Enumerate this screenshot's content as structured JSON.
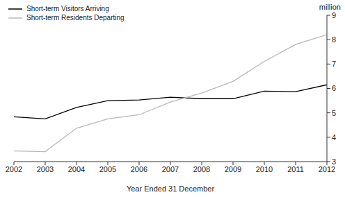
{
  "chart_data": {
    "type": "line",
    "x_label": "Year Ended 31 December",
    "y_label": "million",
    "x": [
      2002,
      2003,
      2004,
      2005,
      2006,
      2007,
      2008,
      2009,
      2010,
      2011,
      2012
    ],
    "xlim": [
      2002,
      2012
    ],
    "xticks": [
      2002,
      2003,
      2004,
      2005,
      2006,
      2007,
      2008,
      2009,
      2010,
      2011,
      2012
    ],
    "ylim": [
      3,
      9
    ],
    "yticks": [
      3,
      4,
      5,
      6,
      7,
      8,
      9
    ],
    "grid": false,
    "legend": "upper left",
    "series": [
      {
        "name": "Short-term Visitors Arriving",
        "color": "#000000",
        "values": [
          4.84,
          4.75,
          5.22,
          5.5,
          5.53,
          5.64,
          5.58,
          5.58,
          5.89,
          5.87,
          6.15
        ]
      },
      {
        "name": "Short-term Residents Departing",
        "color": "#b8b8b8",
        "values": [
          3.44,
          3.41,
          4.37,
          4.75,
          4.92,
          5.44,
          5.81,
          6.29,
          7.11,
          7.8,
          8.21
        ]
      }
    ]
  }
}
